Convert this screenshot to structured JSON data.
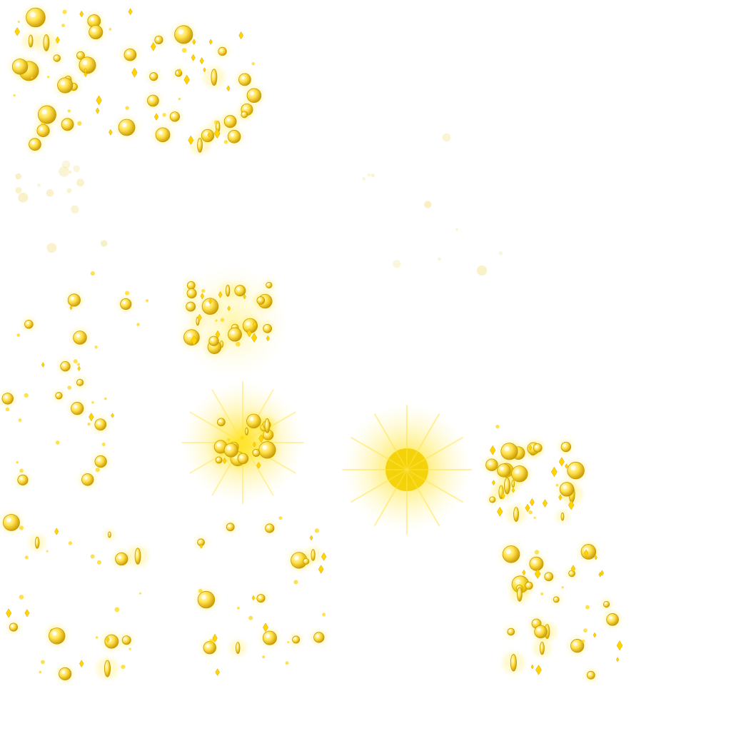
{
  "sprite_sheet": {
    "background": "#ffffff",
    "colors": {
      "coin_light": "#fff6a8",
      "coin_mid": "#ffd84a",
      "coin_dark": "#c89a00",
      "glow": "#ffe100",
      "sparkle": "#ffd400",
      "faint": "#f4e7a0"
    },
    "frames": [
      {
        "name": "coin-burst-frame",
        "kind": "scattered-coins"
      },
      {
        "name": "coin-burst-frame",
        "kind": "scattered-coins"
      },
      {
        "name": "coin-burst-frame",
        "kind": "faint-sparkles"
      },
      {
        "name": "coin-burst-frame",
        "kind": "faint-sparkles"
      },
      {
        "name": "coin-burst-frame",
        "kind": "scattered-coins"
      },
      {
        "name": "coin-burst-frame",
        "kind": "compact-burst"
      },
      {
        "name": "coin-burst-frame",
        "kind": "scattered-coins"
      },
      {
        "name": "coin-burst-frame",
        "kind": "flash-burst"
      },
      {
        "name": "coin-burst-frame",
        "kind": "flash-core"
      },
      {
        "name": "coin-burst-frame",
        "kind": "compact-burst"
      },
      {
        "name": "coin-burst-frame",
        "kind": "scattered-coins"
      },
      {
        "name": "coin-burst-frame",
        "kind": "scattered-coins"
      },
      {
        "name": "coin-burst-frame",
        "kind": "scattered-coins"
      }
    ]
  }
}
